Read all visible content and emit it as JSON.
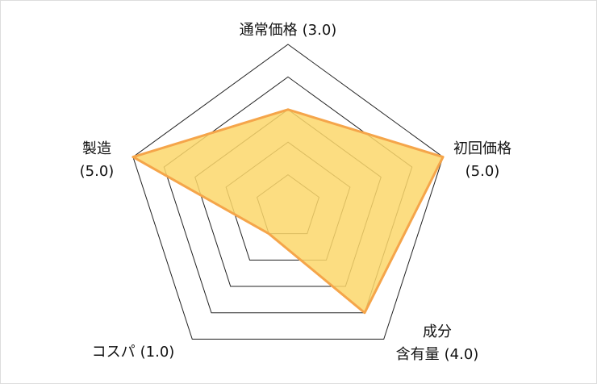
{
  "chart_data": {
    "type": "radar",
    "categories": [
      "通常価格",
      "初回価格",
      "成分\n含有量",
      "コスパ",
      "製造"
    ],
    "values": [
      3.0,
      5.0,
      4.0,
      1.0,
      5.0
    ],
    "value_labels": [
      "(3.0)",
      "(5.0)",
      "(4.0)",
      "(1.0)",
      "(5.0)"
    ],
    "rlim": [
      0,
      5
    ],
    "rticks": [
      1,
      2,
      3,
      4,
      5
    ],
    "color": "#fcd76b",
    "edge_color": "#f5a54a"
  }
}
